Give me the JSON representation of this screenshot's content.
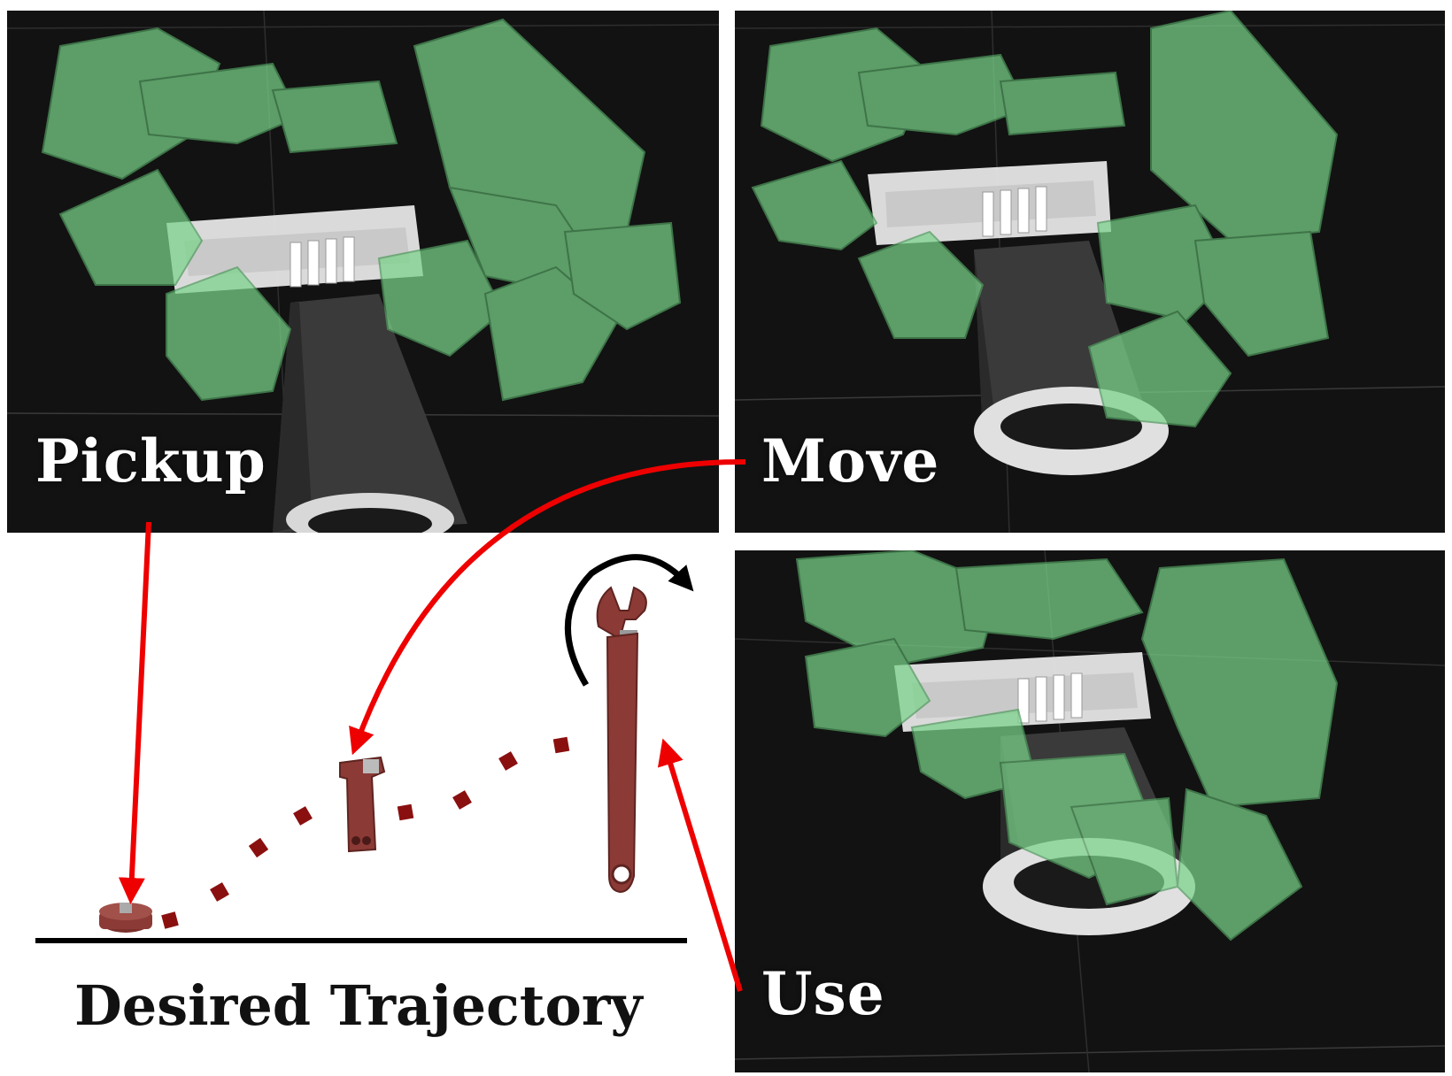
{
  "labels": {
    "pickup": "Pickup",
    "move": "Move",
    "use": "Use",
    "trajectory": "Desired Trajectory"
  },
  "icons": {
    "robot_hand": "robot-hand-icon",
    "wrench": "wrench-icon",
    "rotation": "rotation-arrow-icon"
  },
  "colors": {
    "panel_bg": "#121212",
    "finger_green": "#79d38a",
    "gripper_white": "#e6e6e6",
    "arrow_red": "#ee0000",
    "trajectory_dots": "#8a1010",
    "wrench_red": "#8b3a36",
    "rotation_arrow": "#000000"
  }
}
